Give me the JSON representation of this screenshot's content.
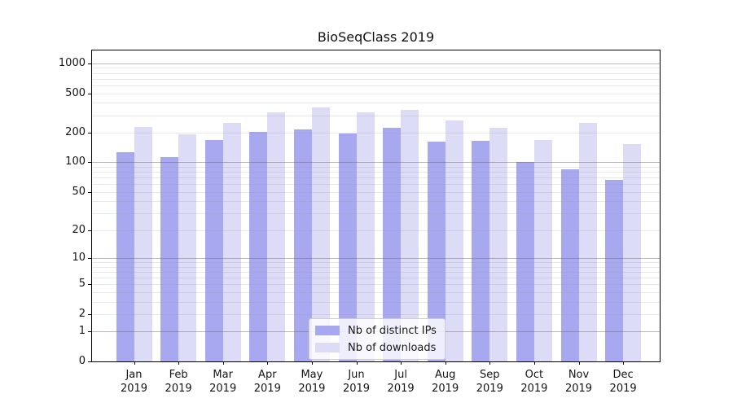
{
  "chart_data": {
    "type": "bar",
    "title": "BioSeqClass 2019",
    "categories": [
      "Jan",
      "Feb",
      "Mar",
      "Apr",
      "May",
      "Jun",
      "Jul",
      "Aug",
      "Sep",
      "Oct",
      "Nov",
      "Dec"
    ],
    "x_year": "2019",
    "series": [
      {
        "name": "Nb of distinct IPs",
        "color": "#a8a8f0",
        "values": [
          126,
          112,
          168,
          204,
          217,
          197,
          224,
          163,
          165,
          101,
          85,
          66
        ]
      },
      {
        "name": "Nb of downloads",
        "color": "#dcdcf7",
        "values": [
          228,
          192,
          250,
          320,
          360,
          320,
          338,
          265,
          222,
          170,
          253,
          154
        ]
      }
    ],
    "xlabel": "",
    "ylabel": "",
    "yscale": "log1p",
    "ylim": [
      0,
      1350
    ],
    "y_tick_values": [
      0,
      1,
      2,
      5,
      10,
      20,
      50,
      100,
      200,
      500,
      1000
    ],
    "grid": {
      "major_values": [
        1,
        10,
        100,
        1000
      ],
      "minor_values": [
        2,
        3,
        4,
        5,
        6,
        7,
        8,
        9,
        20,
        30,
        40,
        50,
        60,
        70,
        80,
        90,
        200,
        300,
        400,
        500,
        600,
        700,
        800,
        900
      ],
      "major_color": "rgba(100,100,100,0.45)",
      "minor_color": "rgba(150,150,150,0.22)",
      "drawn_over_bars": true
    },
    "legend_position": "bottom-center"
  }
}
